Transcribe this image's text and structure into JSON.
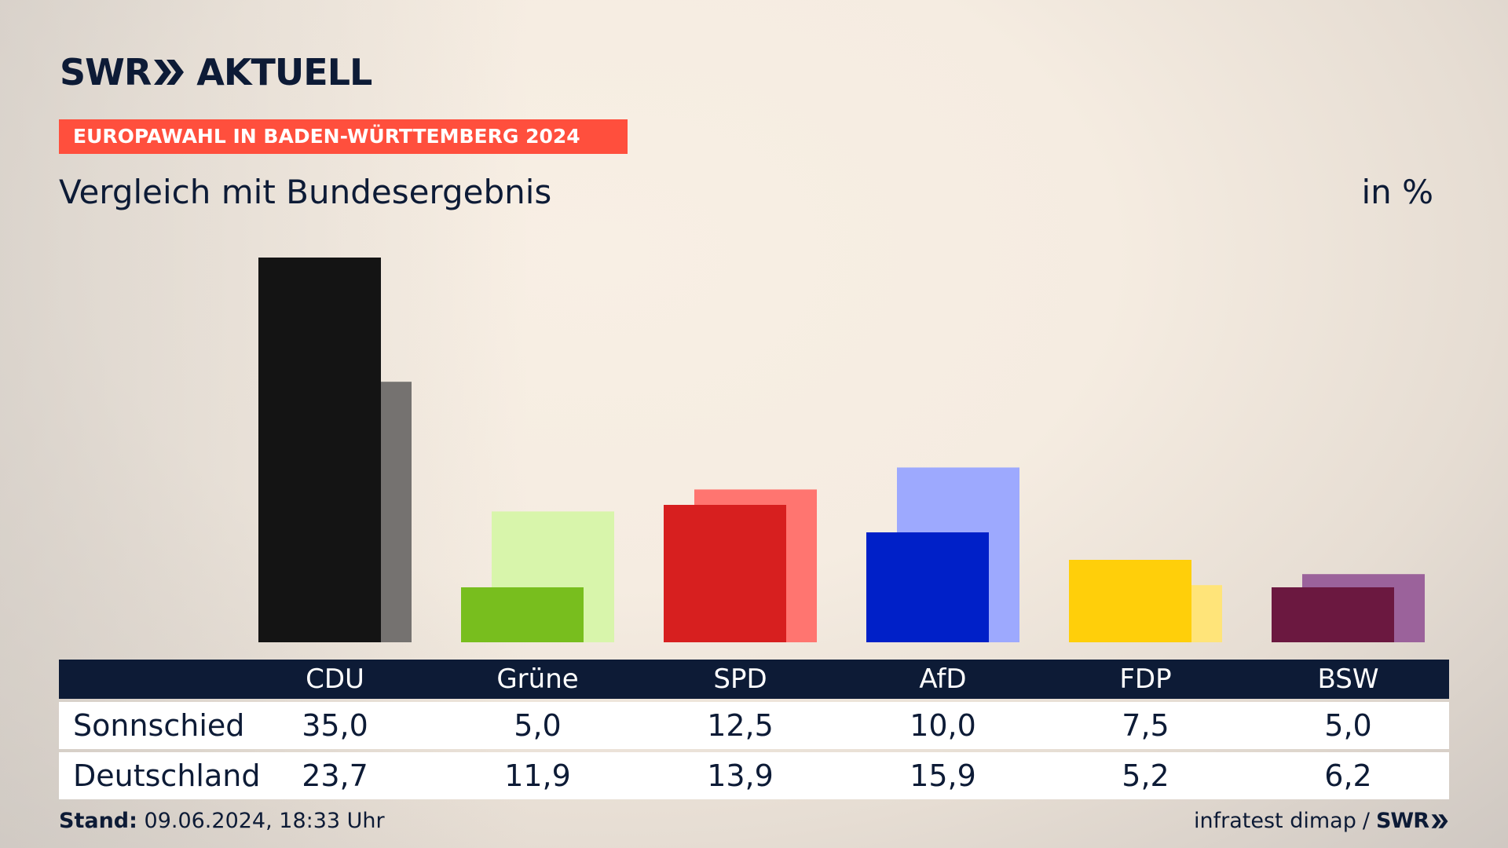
{
  "brand": {
    "swr": "SWR",
    "aktuell": "AKTUELL"
  },
  "topic": "EUROPAWAHL IN BADEN-WÜRTTEMBERG 2024",
  "title": "Vergleich mit Bundesergebnis",
  "unit": "in %",
  "chart_data": {
    "type": "bar",
    "categories": [
      "CDU",
      "Grüne",
      "SPD",
      "AfD",
      "FDP",
      "BSW"
    ],
    "series": [
      {
        "name": "Sonnschied",
        "values": [
          35.0,
          5.0,
          12.5,
          10.0,
          7.5,
          5.0
        ],
        "colors": [
          "#141414",
          "#78be1e",
          "#d71f1f",
          "#0020c8",
          "#ffcf0a",
          "#6b1840"
        ]
      },
      {
        "name": "Deutschland",
        "values": [
          23.7,
          11.9,
          13.9,
          15.9,
          5.2,
          6.2
        ],
        "colors": [
          "#757270",
          "#d8f5ab",
          "#ff7570",
          "#9da9fe",
          "#ffe479",
          "#9b629b"
        ]
      }
    ],
    "ylim": [
      0,
      35
    ]
  },
  "table": {
    "rows": [
      {
        "label": "Sonnschied",
        "values": [
          "35,0",
          "5,0",
          "12,5",
          "10,0",
          "7,5",
          "5,0"
        ]
      },
      {
        "label": "Deutschland",
        "values": [
          "23,7",
          "11,9",
          "13,9",
          "15,9",
          "5,2",
          "6,2"
        ]
      }
    ]
  },
  "footer": {
    "stand_label": "Stand:",
    "stand_value": "09.06.2024, 18:33 Uhr",
    "source": "infratest dimap",
    "separator": "/",
    "swr": "SWR"
  }
}
